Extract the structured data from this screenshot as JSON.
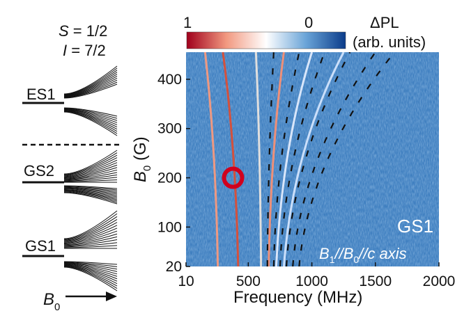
{
  "left_panel": {
    "spin_s": {
      "sym": "S",
      "eq": " = 1/2"
    },
    "spin_i": {
      "sym": "I",
      "eq": " = 7/2"
    },
    "labels": [
      "ES1",
      "GS2",
      "GS1"
    ],
    "b0_axis": {
      "base": "B",
      "sub": "0"
    }
  },
  "colorbar": {
    "title": "ΔPL",
    "units": "(arb. units)",
    "min_label": "1",
    "max_label": "0",
    "colors": [
      "#a0001c",
      "#f29980",
      "#ffffff",
      "#6aa4d8",
      "#0b3c8a"
    ]
  },
  "chart_data": {
    "type": "heatmap",
    "xlabel": "Frequency (MHz)",
    "ylabel": {
      "base": "B",
      "sub": "0",
      "unit": " (G)"
    },
    "x_ticks": [
      "10",
      "500",
      "1000",
      "1500",
      "2000"
    ],
    "x_tick_values": [
      10,
      500,
      1000,
      1500,
      2000
    ],
    "y_ticks": [
      "20",
      "100",
      "200",
      "300",
      "400"
    ],
    "y_tick_values": [
      20,
      100,
      200,
      300,
      400
    ],
    "xlim": [
      10,
      2000
    ],
    "ylim": [
      20,
      455
    ],
    "annotation_gs1": "GS1",
    "annotation_axis": {
      "b": "B",
      "s1": "1",
      "mid": "//",
      "s2": "0",
      "tail": "//c axis"
    },
    "marker": {
      "x": 380,
      "y": 200,
      "color": "#d0001e"
    },
    "background_color": "#3f7fc0",
    "bright_curves": [
      {
        "x_at_20": 260,
        "x_at_455": 160,
        "color": "#ff9a7a"
      },
      {
        "x_at_20": 420,
        "x_at_455": 300,
        "color": "#e24a2e"
      },
      {
        "x_at_20": 600,
        "x_at_455": 560,
        "color": "#f0e8e0"
      },
      {
        "x_at_20": 660,
        "x_at_455": 780,
        "color": "#ff9070"
      },
      {
        "x_at_20": 720,
        "x_at_455": 1000,
        "color": "#e8f0ff"
      },
      {
        "x_at_20": 780,
        "x_at_455": 1250,
        "color": "#d8e8ff"
      }
    ],
    "dashed_curves": [
      {
        "x_at_20": 650,
        "x_at_455": 700
      },
      {
        "x_at_20": 700,
        "x_at_455": 900
      },
      {
        "x_at_20": 750,
        "x_at_455": 1100
      },
      {
        "x_at_20": 800,
        "x_at_455": 1300
      },
      {
        "x_at_20": 850,
        "x_at_455": 1500
      },
      {
        "x_at_20": 900,
        "x_at_455": 1650
      }
    ]
  }
}
